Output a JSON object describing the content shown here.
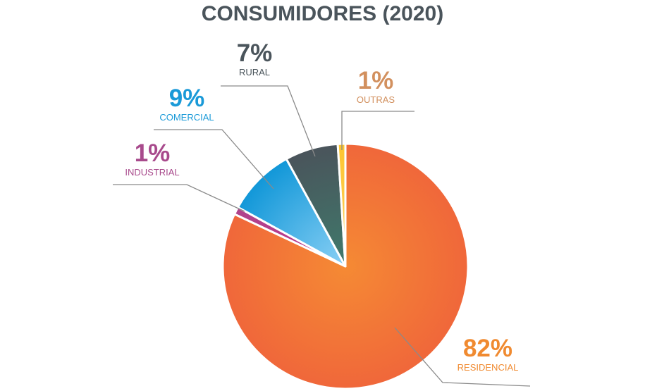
{
  "chart_data": {
    "type": "pie",
    "title": "CONSUMIDORES (2020)",
    "slices": [
      {
        "label": "RESIDENCIAL",
        "value": 82,
        "display": "82%",
        "color": "#f0673a",
        "color2": "#f58a34",
        "text_color": "#f08a30"
      },
      {
        "label": "INDUSTRIAL",
        "value": 1,
        "display": "1%",
        "color": "#b0448c",
        "color2": "#c0308a",
        "text_color": "#a84a8c"
      },
      {
        "label": "COMERCIAL",
        "value": 9,
        "display": "9%",
        "color": "#1197d8",
        "color2": "#8ad0f5",
        "text_color": "#1a9ad8"
      },
      {
        "label": "RURAL",
        "value": 7,
        "display": "7%",
        "color": "#4a545b",
        "color2": "#3f7a6c",
        "text_color": "#4a545b"
      },
      {
        "label": "OUTRAS",
        "value": 1,
        "display": "1%",
        "color": "#fdc530",
        "color2": "#fdd060",
        "text_color": "#d2905e"
      }
    ],
    "start": "top",
    "direction": "clockwise",
    "legend": "none",
    "leader_line_color": "#8a8a8a"
  }
}
